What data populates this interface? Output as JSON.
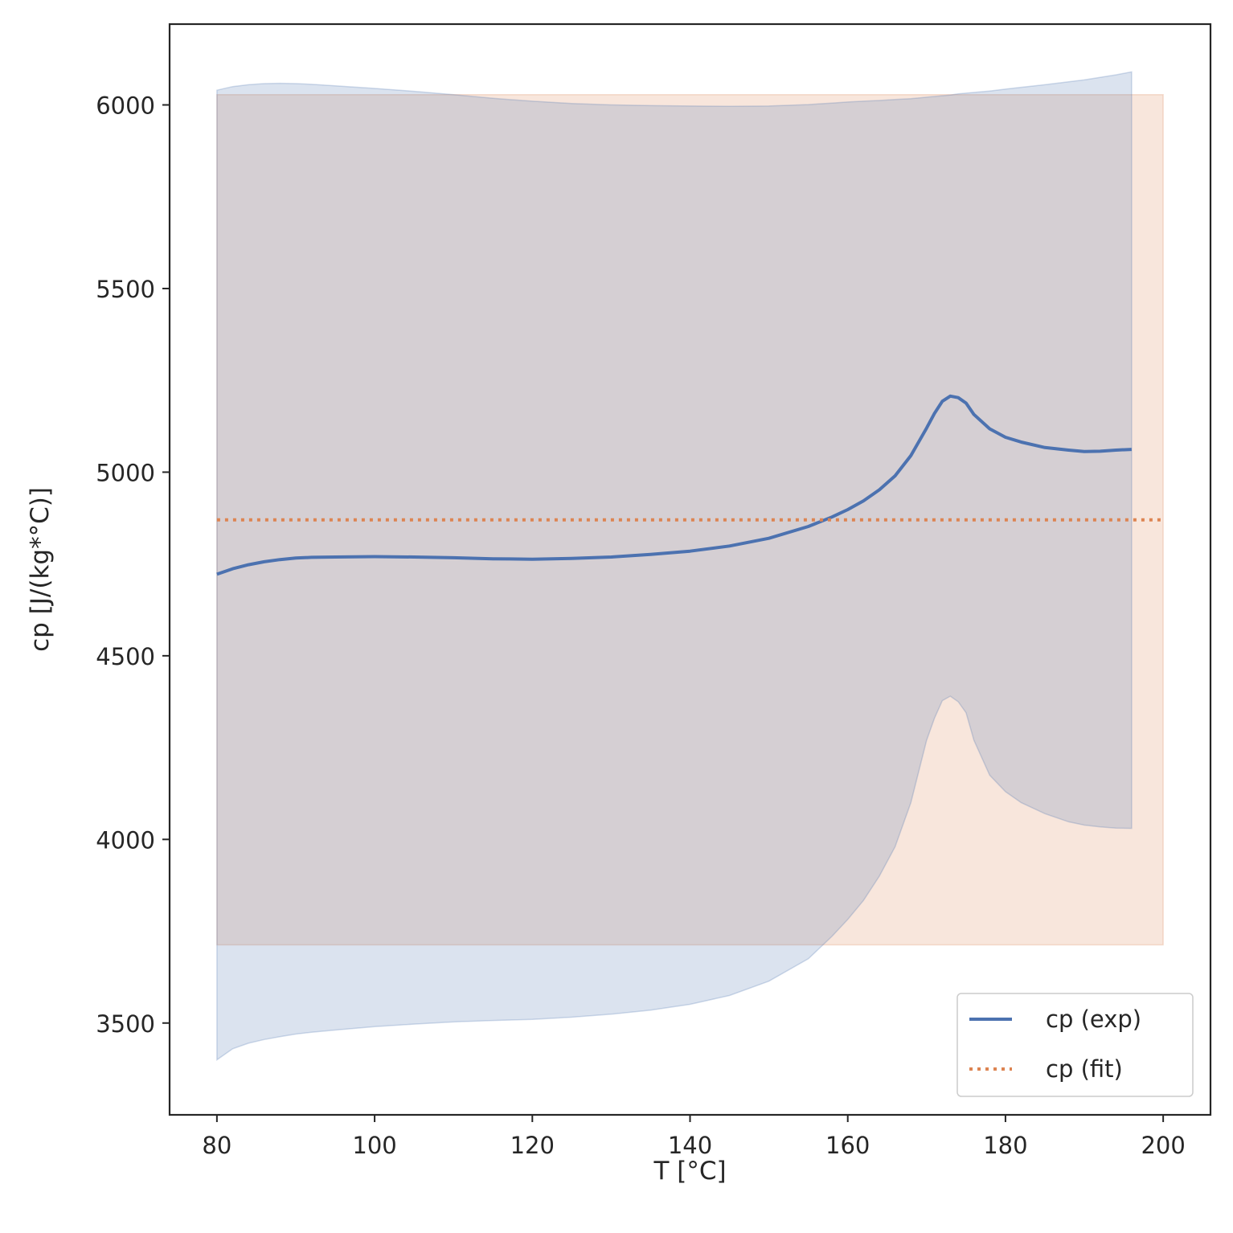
{
  "chart_data": {
    "type": "line",
    "title": "",
    "xlabel": "T [°C]",
    "ylabel": "cp [J/(kg*°C)]",
    "xlim": [
      74,
      206
    ],
    "ylim": [
      3250,
      6220
    ],
    "xticks": [
      80,
      100,
      120,
      140,
      160,
      180,
      200
    ],
    "yticks": [
      3500,
      4000,
      4500,
      5000,
      5500,
      6000
    ],
    "grid": false,
    "legend_position": "lower right",
    "series": [
      {
        "name": "cp (exp)",
        "style": "solid",
        "color": "#4c72b0",
        "x": [
          80,
          82,
          84,
          86,
          88,
          90,
          92,
          95,
          100,
          105,
          110,
          115,
          120,
          125,
          130,
          135,
          140,
          145,
          150,
          155,
          158,
          160,
          162,
          164,
          166,
          168,
          170,
          171,
          172,
          173,
          174,
          175,
          176,
          178,
          180,
          182,
          185,
          188,
          190,
          192,
          194,
          196
        ],
        "y": [
          4722,
          4737,
          4748,
          4756,
          4762,
          4766,
          4768,
          4769,
          4770,
          4769,
          4767,
          4764,
          4763,
          4765,
          4769,
          4776,
          4785,
          4799,
          4820,
          4852,
          4878,
          4898,
          4922,
          4952,
          4990,
          5045,
          5120,
          5160,
          5193,
          5207,
          5203,
          5188,
          5157,
          5118,
          5095,
          5082,
          5067,
          5060,
          5056,
          5057,
          5060,
          5062
        ],
        "band_upper": [
          6040,
          6050,
          6055,
          6058,
          6059,
          6058,
          6056,
          6052,
          6045,
          6037,
          6028,
          6018,
          6010,
          6004,
          6000,
          5998,
          5997,
          5996,
          5997,
          6001,
          6005,
          6008,
          6010,
          6012,
          6015,
          6017,
          6021,
          6023,
          6025,
          6027,
          6030,
          6032,
          6034,
          6038,
          6043,
          6048,
          6055,
          6063,
          6068,
          6075,
          6082,
          6090
        ],
        "band_lower": [
          3400,
          3430,
          3445,
          3455,
          3463,
          3470,
          3475,
          3481,
          3490,
          3497,
          3503,
          3507,
          3510,
          3516,
          3524,
          3535,
          3551,
          3575,
          3614,
          3675,
          3736,
          3782,
          3834,
          3900,
          3980,
          4100,
          4270,
          4330,
          4378,
          4390,
          4375,
          4345,
          4270,
          4175,
          4130,
          4100,
          4070,
          4048,
          4039,
          4034,
          4031,
          4030
        ]
      },
      {
        "name": "cp (fit)",
        "style": "dotted",
        "color": "#dd8452",
        "x": [
          80,
          200
        ],
        "y": [
          4870,
          4870
        ],
        "band_upper": [
          6028,
          6028
        ],
        "band_lower": [
          3713,
          3713
        ]
      }
    ]
  }
}
